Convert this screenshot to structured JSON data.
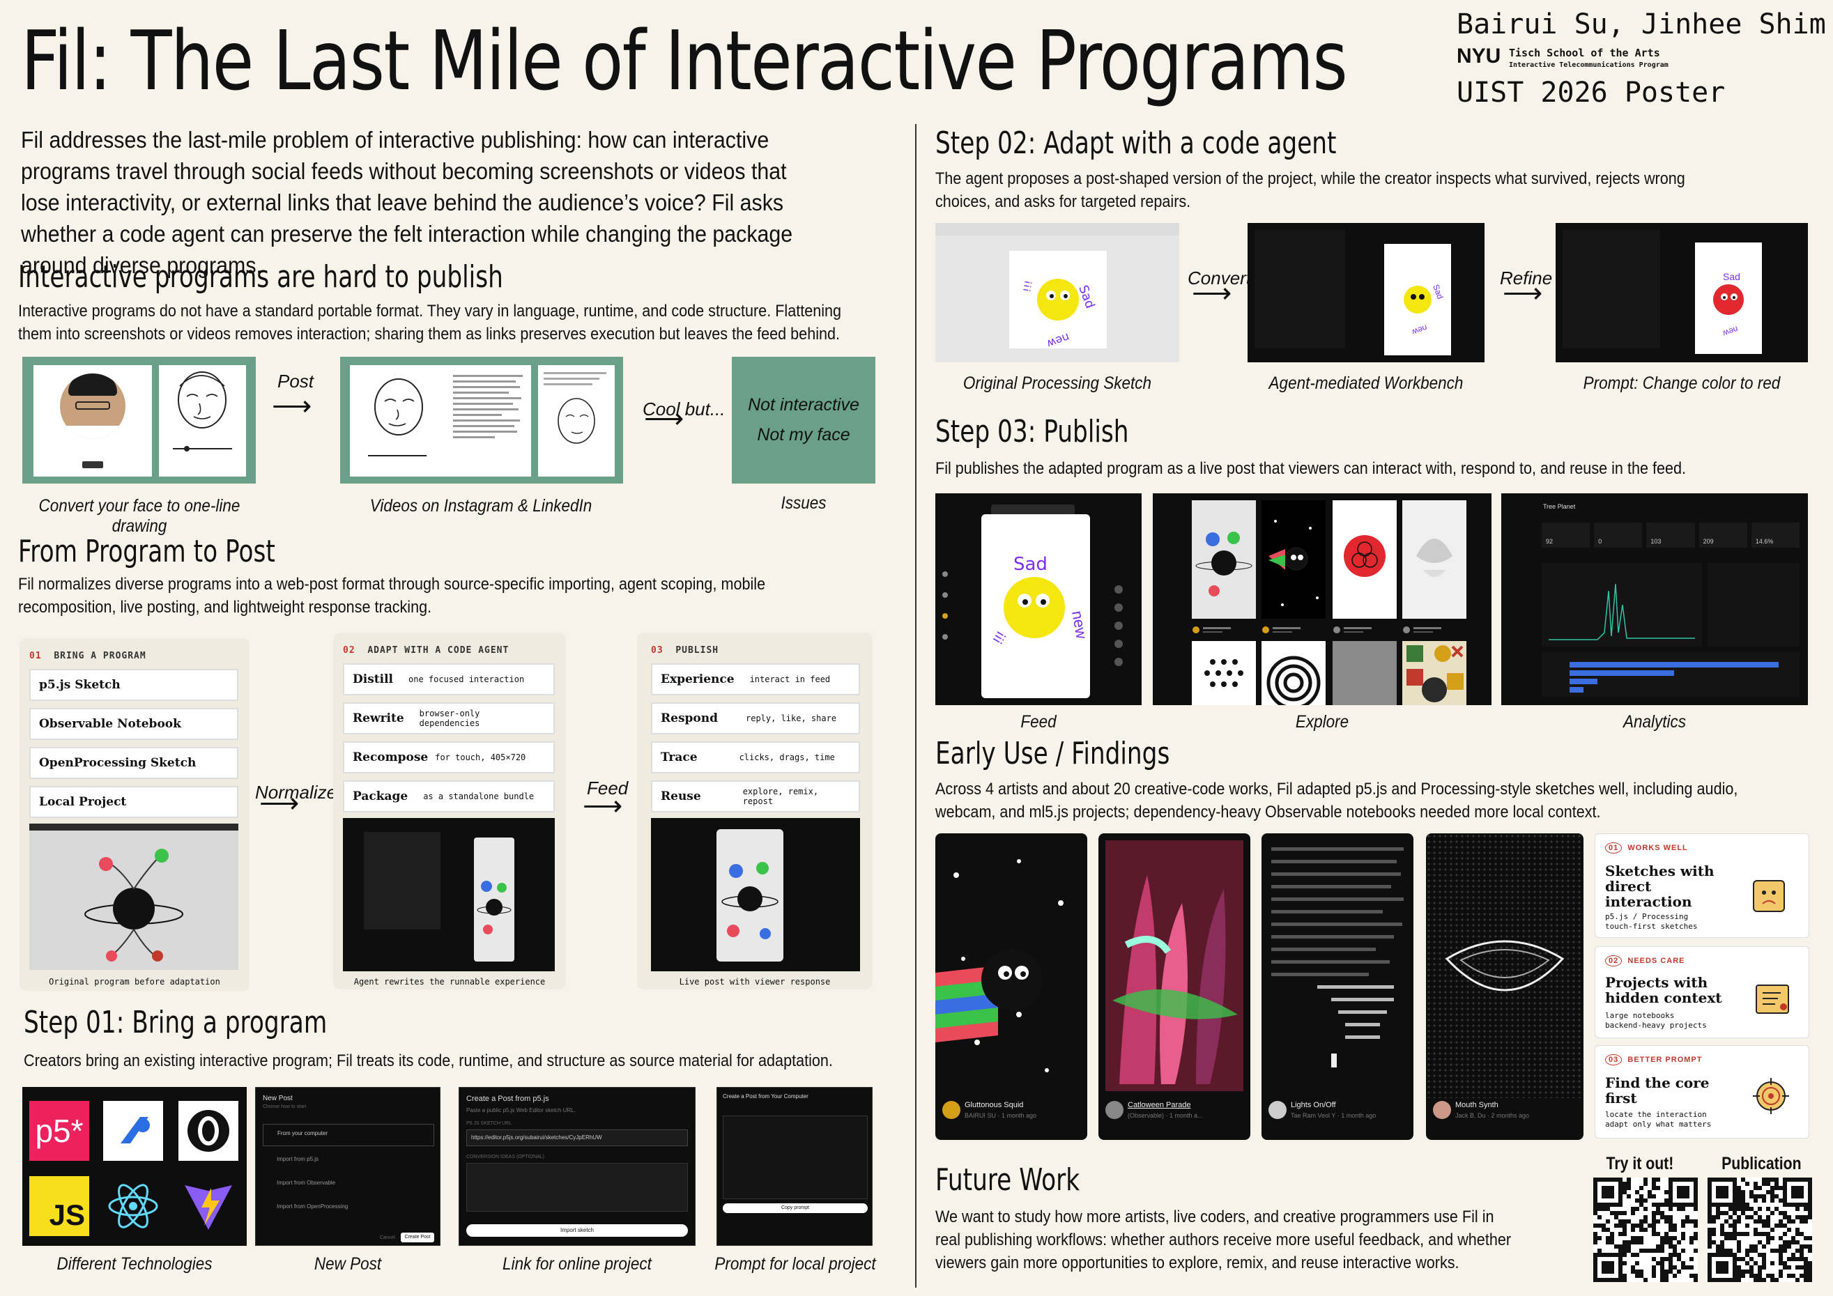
{
  "title": "Fil: The Last Mile of Interactive Programs",
  "authors": "Bairui Su, Jinhee Shim",
  "nyu": "NYU",
  "tisch": "Tisch School of the Arts",
  "itp": "Interactive Telecommunications Program",
  "venue": "UIST 2026 Poster",
  "intro": "Fil addresses the last-mile problem of interactive publishing: how can interactive programs travel through social feeds without becoming screenshots or videos that lose interactivity, or external links that leave behind the audience’s voice? Fil asks whether a code agent can preserve the felt interaction while changing the package around diverse programs.",
  "s1": {
    "heading": "Interactive programs are hard to publish",
    "body": "Interactive programs do not have a standard portable format. They vary in language, runtime, and code structure. Flattening them into screenshots or videos removes interaction; sharing them as links preserves execution but leaves the feed behind.",
    "arrow1": "Post",
    "arrow2": "Cool but...",
    "issue1": "Not interactive",
    "issue2": "Not my face",
    "cap1": "Convert your face to one-line drawing",
    "cap2": "Videos on Instagram & LinkedIn",
    "cap3": "Issues"
  },
  "s2": {
    "heading": "From Program to Post",
    "body": "Fil normalizes diverse programs into a web-post format through source-specific importing, agent scoping, mobile recomposition, live posting, and lightweight response tracking.",
    "stage1": {
      "num": "01",
      "label": "BRING A PROGRAM",
      "items": [
        "p5.js Sketch",
        "Observable Notebook",
        "OpenProcessing Sketch",
        "Local Project"
      ],
      "cap": "Original program before adaptation"
    },
    "stage2": {
      "num": "02",
      "label": "ADAPT WITH A CODE AGENT",
      "items": [
        {
          "k": "Distill",
          "v": "one focused interaction"
        },
        {
          "k": "Rewrite",
          "v": "browser-only dependencies"
        },
        {
          "k": "Recompose",
          "v": "for touch, 405×720"
        },
        {
          "k": "Package",
          "v": "as a standalone bundle"
        }
      ],
      "cap": "Agent rewrites the runnable experience"
    },
    "stage3": {
      "num": "03",
      "label": "PUBLISH",
      "items": [
        {
          "k": "Experience",
          "v": "interact in feed"
        },
        {
          "k": "Respond",
          "v": "reply, like, share"
        },
        {
          "k": "Trace",
          "v": "clicks, drags, time"
        },
        {
          "k": "Reuse",
          "v": "explore, remix, repost"
        }
      ],
      "cap": "Live post with viewer response"
    },
    "arrow1": "Normalize",
    "arrow2": "Feed"
  },
  "s3": {
    "heading": "Step 01: Bring a program",
    "body": "Creators bring an existing interactive program; Fil treats its code, runtime, and structure as source material for adaptation.",
    "caps": [
      "Different Technologies",
      "New Post",
      "Link for online project",
      "Prompt for local project"
    ],
    "newpost": {
      "title": "New Post",
      "sub": "Choose how to start",
      "opts": [
        "From your computer",
        "Import from p5.js",
        "Import from Observable",
        "Import from OpenProcessing"
      ],
      "btn": "Create Post",
      "cancel": "Cancel"
    },
    "p5post": {
      "title": "Create a Post from p5.js",
      "sub": "Paste a public p5.js Web Editor sketch URL.",
      "field": "P5.JS SKETCH URL",
      "url": "https://editor.p5js.org/subairui/sketches/CyJpERhUW",
      "lbl2": "CONVERSION IDEAS (OPTIONAL)",
      "btn": "Import sketch"
    },
    "localpost": {
      "title": "Create a Post from Your Computer",
      "btn": "Copy prompt"
    }
  },
  "s4": {
    "heading": "Step 02: Adapt with a code agent",
    "body": "The agent proposes a post-shaped version of the project, while the creator inspects what survived, rejects wrong choices, and asks for targeted repairs.",
    "arrow1": "Convert",
    "arrow2": "Refine",
    "caps": [
      "Original Processing Sketch",
      "Agent-mediated Workbench",
      "Prompt: Change color to red"
    ]
  },
  "s5": {
    "heading": "Step 03: Publish",
    "body": "Fil publishes the adapted program as a live post that viewers can interact with, respond to, and reuse in the feed.",
    "caps": [
      "Feed",
      "Explore",
      "Analytics"
    ],
    "analytics_title": "Tree Planet",
    "stats": [
      "92",
      "0",
      "103",
      "209",
      "14.6%"
    ]
  },
  "s6": {
    "heading": "Early Use / Findings",
    "body": "Across 4 artists and about 20 creative-code works, Fil adapted p5.js and Processing-style sketches well, including audio, webcam, and ml5.js projects; dependency-heavy Observable notebooks needed more local context.",
    "works": [
      {
        "name": "Gluttonous Squid",
        "meta": "BAIRUI SU · 1 month ago"
      },
      {
        "name": "Catloween Parade",
        "meta": "(Observable) · 1 month a..."
      },
      {
        "name": "Lights On/Off",
        "meta": "Tae Ram Veol Y · 1 month ago"
      },
      {
        "name": "Mouth Synth",
        "meta": "Jack B. Du · 2 months ago"
      }
    ],
    "cards": [
      {
        "num": "01",
        "tag": "WORKS WELL",
        "head": "Sketches with direct interaction",
        "sub": "p5.js / Processing touch-first sketches"
      },
      {
        "num": "02",
        "tag": "NEEDS CARE",
        "head": "Projects with hidden context",
        "sub": "large notebooks backend-heavy projects"
      },
      {
        "num": "03",
        "tag": "BETTER PROMPT",
        "head": "Find the core first",
        "sub": "locate the interaction adapt only what matters"
      }
    ]
  },
  "s7": {
    "heading": "Future Work",
    "body": "We want to study how more artists, live coders, and creative programmers use Fil in real publishing workflows: whether authors receive more useful feedback, and whether viewers gain more opportunities to explore, remix, and reuse interactive works.",
    "qr1": "Try it out!",
    "qr2": "Publication"
  },
  "tech": [
    "p5*",
    "JS"
  ],
  "sad_text": "Sad new",
  "colors": {
    "bg": "#f7f3ea",
    "green": "#6a9f8a",
    "yellow": "#f5e60f",
    "red": "#e0282e",
    "purple": "#7b2ff7"
  }
}
